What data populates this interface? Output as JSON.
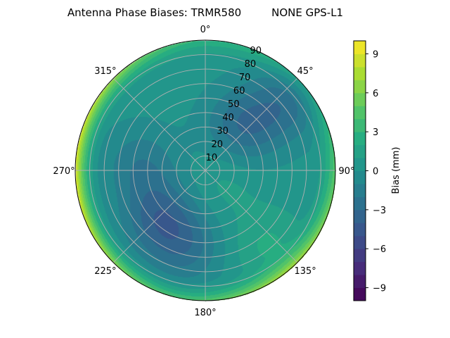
{
  "chart_data": {
    "type": "heatmap",
    "subtype": "polar-contour",
    "title": "Antenna Phase Biases: TRMR580         NONE GPS-L1",
    "theta_direction": "clockwise",
    "theta_zero": "top",
    "theta_ticks": [
      "0°",
      "45°",
      "90°",
      "135°",
      "180°",
      "225°",
      "270°",
      "315°"
    ],
    "theta_tick_values": [
      0,
      45,
      90,
      135,
      180,
      225,
      270,
      315
    ],
    "r_ticks": [
      "10",
      "20",
      "30",
      "40",
      "50",
      "60",
      "70",
      "80",
      "90"
    ],
    "r_tick_values": [
      10,
      20,
      30,
      40,
      50,
      60,
      70,
      80,
      90
    ],
    "rlim": [
      0,
      90
    ],
    "grid": true,
    "colormap": "viridis",
    "colorbar": {
      "label": "Bias (mm)",
      "range": [
        -10,
        10
      ],
      "level_step": 1,
      "ticks": [
        "−9",
        "−6",
        "−3",
        "0",
        "3",
        "6",
        "9"
      ],
      "tick_values": [
        -9,
        -6,
        -3,
        0,
        3,
        6,
        9
      ]
    },
    "approx_features": [
      {
        "azimuth": 40,
        "zenith": 40,
        "bias": -3.2
      },
      {
        "azimuth": 50,
        "zenith": 72,
        "bias": -2.6
      },
      {
        "azimuth": 225,
        "zenith": 45,
        "bias": -3.6
      },
      {
        "azimuth": 195,
        "zenith": 55,
        "bias": -2.6
      },
      {
        "azimuth": 275,
        "zenith": 45,
        "bias": -2.2
      },
      {
        "azimuth": 140,
        "zenith": 68,
        "bias": 1.8
      },
      {
        "azimuth": 130,
        "zenith": 15,
        "bias": 1.0
      },
      {
        "azimuth": 270,
        "zenith": 90,
        "bias": 9.0
      },
      {
        "azimuth": 135,
        "zenith": 90,
        "bias": 6.0
      },
      {
        "azimuth": 0,
        "zenith": 90,
        "bias": 3.0
      }
    ]
  }
}
